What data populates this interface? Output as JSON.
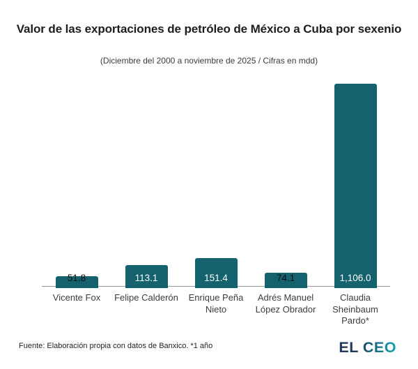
{
  "header": {
    "title": "Valor de las exportaciones de petróleo de México a Cuba por sexenio",
    "subtitle": "(Diciembre del 2000 a noviembre de 2025 / Cifras en mdd)"
  },
  "chart_data": {
    "type": "bar",
    "title": "Valor de las exportaciones de petróleo de México a Cuba por sexenio",
    "subtitle": "(Diciembre del 2000 a noviembre de 2025 / Cifras en mdd)",
    "categories": [
      "Vicente Fox",
      "Felipe Calderón",
      "Enrique Peña\nNieto",
      "Adrés Manuel\nLópez Obrador",
      "Claudia\nSheinbaum\nPardo*"
    ],
    "values": [
      51.8,
      113.1,
      151.4,
      74.1,
      1106.0
    ],
    "value_labels": [
      "51.8",
      "113.1",
      "151.4",
      "74.1",
      "1,106.0"
    ],
    "unit": "mdd",
    "xlabel": "",
    "ylabel": "",
    "ylim": [
      0,
      1106
    ],
    "grid": false,
    "legend": false,
    "bar_color": "#15626f",
    "axis_color": "#9b9b9b"
  },
  "footer": {
    "source": "Fuente: Elaboración propia con datos de Banxico. *1 año",
    "logo": {
      "el": "EL",
      "ceo": "CEO"
    }
  }
}
